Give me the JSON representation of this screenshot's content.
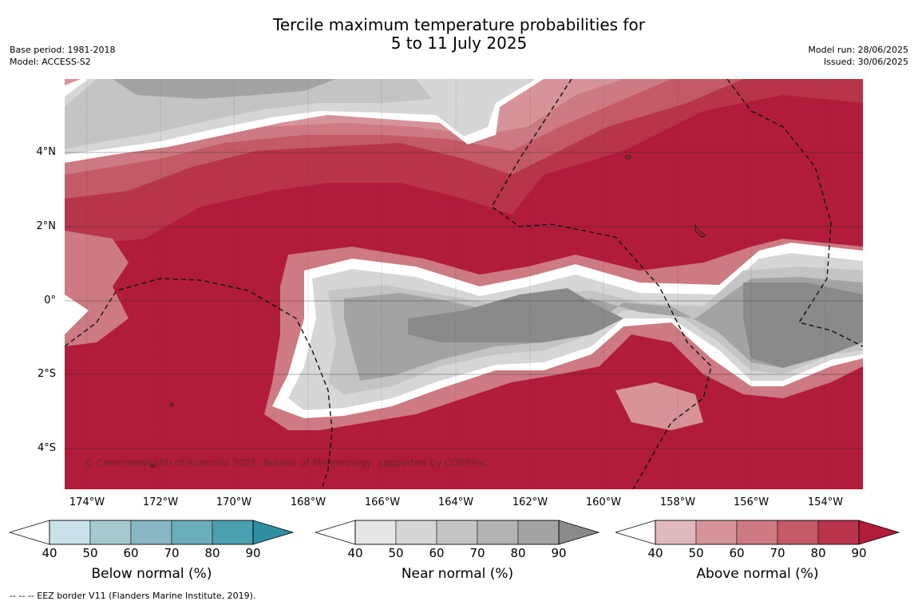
{
  "title_line1": "Tercile maximum temperature probabilities for",
  "title_line2": "5 to 11 July 2025",
  "base_period": "Base period: 1981-2018",
  "model": "Model: ACCESS-S2",
  "model_run": "Model run: 28/06/2025",
  "issued": "Issued: 30/06/2025",
  "copyright": "© Commonwealth of Australia 2025, Bureau of Meteorology, supported by COSPPac",
  "footnote": "--  --  -- EEZ border V11 (Flanders Marine Institute, 2019).",
  "lat_labels": [
    "4°N",
    "2°N",
    "0°",
    "2°S",
    "4°S"
  ],
  "lon_labels": [
    "174°W",
    "172°W",
    "170°W",
    "168°W",
    "166°W",
    "164°W",
    "162°W",
    "160°W",
    "158°W",
    "156°W",
    "154°W"
  ],
  "legends": [
    {
      "title": "Below normal (%)",
      "ticks": [
        "40",
        "50",
        "60",
        "70",
        "80",
        "90"
      ],
      "colors": [
        "#c9e2e9",
        "#a6c8cf",
        "#89b7c3",
        "#6aaebb",
        "#4b9fae",
        "#2e8fa1"
      ]
    },
    {
      "title": "Near normal (%)",
      "ticks": [
        "40",
        "50",
        "60",
        "70",
        "80",
        "90"
      ],
      "colors": [
        "#e6e6e6",
        "#d6d6d6",
        "#c4c4c4",
        "#b3b3b3",
        "#a3a3a3",
        "#8a8a8a"
      ]
    },
    {
      "title": "Above normal (%)",
      "ticks": [
        "40",
        "50",
        "60",
        "70",
        "80",
        "90"
      ],
      "colors": [
        "#e0b9bd",
        "#d6939a",
        "#cd7a82",
        "#c35a66",
        "#b8344a",
        "#b11c3a"
      ]
    }
  ],
  "field_colors": {
    "red_strong": "#b11c3a",
    "red_mid": "#b8344a",
    "red_light": "#c35a66",
    "red_pale": "#cd7a82",
    "pink": "#d6939a",
    "grey_light": "#d6d6d6",
    "grey_mid": "#c4c4c4",
    "grey_dark": "#a3a3a3",
    "grey_darker": "#8a8a8a",
    "border": "#ffffff"
  }
}
